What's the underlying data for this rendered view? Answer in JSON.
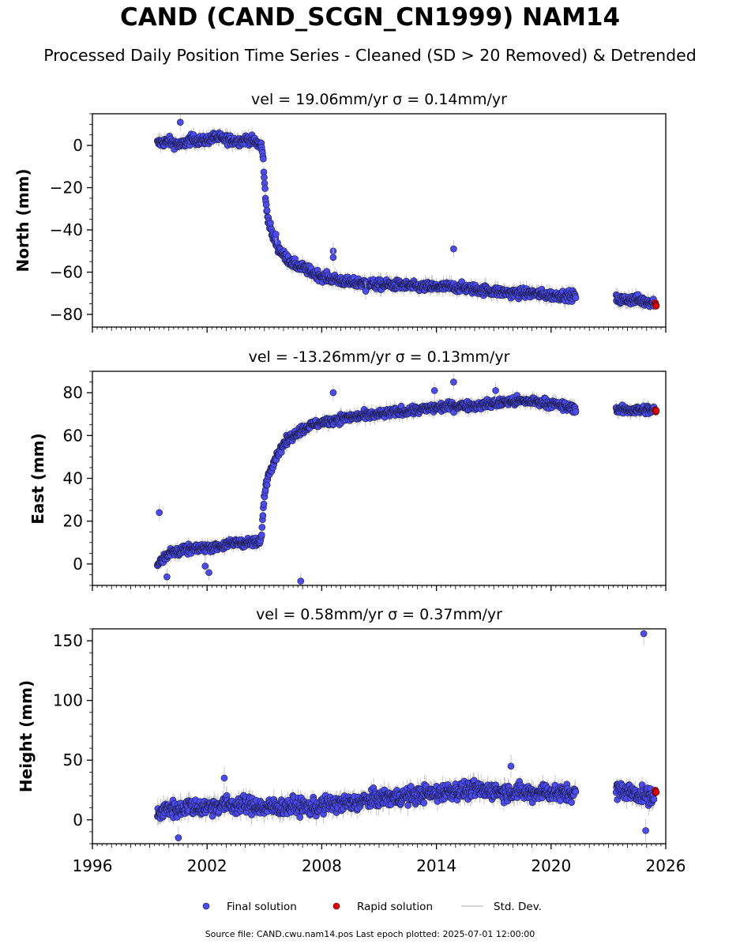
{
  "header": {
    "title": "CAND (CAND_SCGN_CN1999) NAM14",
    "subtitle": "Processed Daily Position Time Series - Cleaned (SD > 20 Removed) & Detrended"
  },
  "footer": {
    "text": "Source file: CAND.cwu.nam14.pos  Last epoch plotted: 2025-07-01 12:00:00"
  },
  "legend": {
    "final": "Final solution",
    "rapid": "Rapid solution",
    "std": "Std. Dev."
  },
  "colors": {
    "final_fill": "#4b4bf0",
    "final_edge": "#1a1a40",
    "rapid_fill": "#e00000",
    "std_line": "#c8c8c8"
  },
  "chart_data": [
    {
      "type": "scatter",
      "title": "vel = 19.06mm/yr   σ = 0.14mm/yr",
      "ylabel": "North (mm)",
      "xlim": [
        1996,
        2026
      ],
      "ylim": [
        -86,
        15
      ],
      "xticks": [
        1996,
        2002,
        2008,
        2014,
        2020,
        2026
      ],
      "yticks": [
        0,
        -20,
        -40,
        -60,
        -80
      ],
      "series": [
        {
          "name": "Final solution",
          "x": [
            1999.4,
            2000.0,
            2000.6,
            2001.2,
            2001.8,
            2002.4,
            2003.0,
            2003.6,
            2004.2,
            2004.6,
            2004.85,
            2004.95,
            2005.05,
            2005.2,
            2005.4,
            2005.7,
            2006.0,
            2006.5,
            2007.0,
            2007.5,
            2008.0,
            2008.5,
            2009.0,
            2009.5,
            2010.0,
            2011.0,
            2012.0,
            2013.0,
            2014.0,
            2015.0,
            2016.0,
            2017.0,
            2018.0,
            2019.0,
            2020.0,
            2021.0,
            2023.5,
            2024.0,
            2024.5,
            2025.0,
            2025.3
          ],
          "y": [
            1,
            2,
            0,
            3,
            2,
            4,
            3,
            2,
            3,
            1,
            0,
            -8,
            -25,
            -35,
            -42,
            -48,
            -52,
            -56,
            -58,
            -60,
            -62,
            -63,
            -64,
            -65,
            -65,
            -66,
            -66,
            -67,
            -67,
            -67,
            -68,
            -69,
            -70,
            -70,
            -71,
            -71,
            -73,
            -73,
            -73,
            -74,
            -74
          ]
        },
        {
          "name": "Rapid solution",
          "x": [
            2025.45,
            2025.5
          ],
          "y": [
            -75,
            -76
          ]
        }
      ],
      "outliers": {
        "x": [
          2000.6,
          2005.6,
          2008.6,
          2008.6,
          2014.9,
          2010.3
        ],
        "y": [
          11,
          -42,
          -50,
          -53,
          -49,
          -69
        ]
      }
    },
    {
      "type": "scatter",
      "title": "vel = -13.26mm/yr   σ = 0.13mm/yr",
      "ylabel": "East (mm)",
      "xlim": [
        1996,
        2026
      ],
      "ylim": [
        -10,
        90
      ],
      "xticks": [
        1996,
        2002,
        2008,
        2014,
        2020,
        2026
      ],
      "yticks": [
        80,
        60,
        40,
        20,
        0
      ],
      "series": [
        {
          "name": "Final solution",
          "x": [
            1999.4,
            1999.7,
            2000.0,
            2000.5,
            2001.0,
            2001.5,
            2002.0,
            2002.5,
            2003.0,
            2003.5,
            2004.0,
            2004.5,
            2004.8,
            2004.9,
            2005.0,
            2005.1,
            2005.3,
            2005.6,
            2006.0,
            2006.5,
            2007.0,
            2007.5,
            2008.0,
            2008.5,
            2009.0,
            2010.0,
            2011.0,
            2012.0,
            2013.0,
            2014.0,
            2015.0,
            2016.0,
            2017.0,
            2018.0,
            2019.0,
            2020.0,
            2021.0,
            2023.5,
            2024.0,
            2024.5,
            2025.0
          ],
          "y": [
            0,
            3,
            5,
            6,
            7,
            7,
            8,
            8,
            9,
            10,
            10,
            10,
            10,
            20,
            32,
            38,
            44,
            50,
            56,
            60,
            63,
            65,
            66,
            67,
            68,
            69,
            70,
            71,
            72,
            73,
            74,
            74,
            75,
            76,
            76,
            75,
            73,
            72,
            72,
            72,
            72
          ]
        },
        {
          "name": "Rapid solution",
          "x": [
            2025.45,
            2025.5
          ],
          "y": [
            72,
            71
          ]
        }
      ],
      "outliers": {
        "x": [
          1999.5,
          1999.9,
          2001.9,
          2002.1,
          2006.9,
          2008.6,
          2013.9,
          2014.9,
          2017.1
        ],
        "y": [
          24,
          -6,
          -1,
          -4,
          -8,
          80,
          81,
          85,
          81
        ]
      }
    },
    {
      "type": "scatter",
      "title": "vel = 0.58mm/yr   σ = 0.37mm/yr",
      "ylabel": "Height (mm)",
      "xlim": [
        1996,
        2026
      ],
      "ylim": [
        -20,
        160
      ],
      "xticks": [
        1996,
        2002,
        2008,
        2014,
        2020,
        2026
      ],
      "yticks": [
        150,
        100,
        50,
        0
      ],
      "series": [
        {
          "name": "Final solution",
          "x": [
            1999.4,
            2000.0,
            2000.5,
            2001.0,
            2001.5,
            2002.0,
            2002.5,
            2003.0,
            2003.5,
            2004.0,
            2004.5,
            2005.0,
            2005.5,
            2006.0,
            2006.5,
            2007.0,
            2007.5,
            2008.0,
            2008.5,
            2009.0,
            2009.5,
            2010.0,
            2010.5,
            2011.0,
            2011.5,
            2012.0,
            2012.5,
            2013.0,
            2013.5,
            2014.0,
            2014.5,
            2015.0,
            2015.5,
            2016.0,
            2016.5,
            2017.0,
            2017.5,
            2018.0,
            2018.5,
            2019.0,
            2019.5,
            2020.0,
            2020.5,
            2021.0,
            2023.5,
            2024.0,
            2024.5,
            2025.0
          ],
          "y": [
            5,
            10,
            8,
            12,
            10,
            11,
            12,
            13,
            12,
            13,
            12,
            10,
            11,
            10,
            12,
            11,
            10,
            12,
            13,
            14,
            14,
            15,
            17,
            18,
            19,
            19,
            20,
            21,
            22,
            22,
            24,
            25,
            24,
            26,
            24,
            25,
            23,
            24,
            23,
            22,
            24,
            23,
            22,
            22,
            25,
            24,
            22,
            20
          ]
        },
        {
          "name": "Rapid solution",
          "x": [
            2025.45,
            2025.5
          ],
          "y": [
            24,
            23
          ]
        }
      ],
      "outliers": {
        "x": [
          2024.85,
          2024.95,
          2000.5,
          2002.9,
          2017.9
        ],
        "y": [
          156,
          -9,
          -15,
          35,
          45
        ]
      }
    }
  ]
}
